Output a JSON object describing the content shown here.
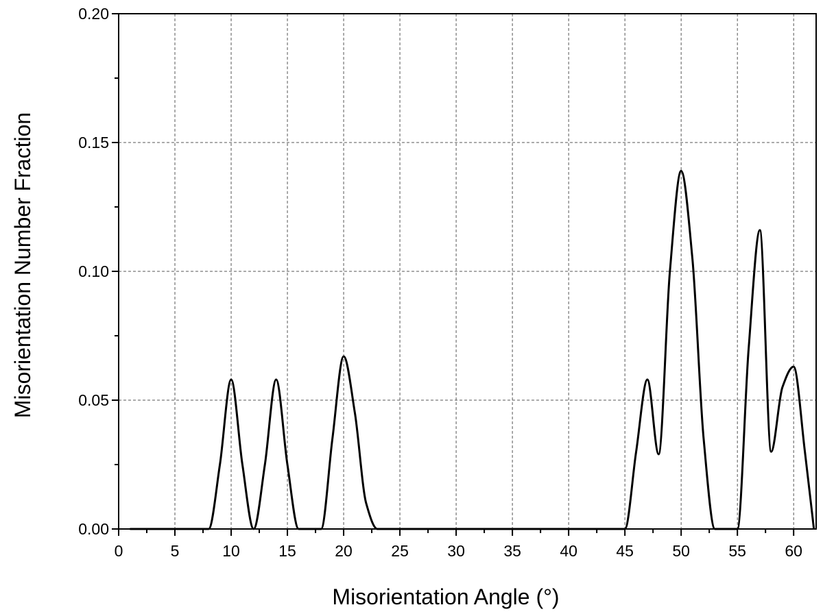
{
  "chart_data": {
    "type": "line",
    "xlabel": "Misorientation Angle (°)",
    "ylabel": "Misorientation Number Fraction",
    "xlim": [
      0,
      62
    ],
    "ylim": [
      0,
      0.2
    ],
    "xticks": [
      "0",
      "5",
      "10",
      "15",
      "20",
      "25",
      "30",
      "35",
      "40",
      "45",
      "50",
      "55",
      "60"
    ],
    "yticks": [
      "0.00",
      "0.05",
      "0.10",
      "0.15",
      "0.20"
    ],
    "grid": true,
    "series": [
      {
        "x": [
          1,
          8,
          9,
          10,
          11,
          12,
          13,
          14,
          15,
          16,
          18,
          19,
          20,
          21,
          22,
          23,
          45,
          46,
          47,
          48,
          49,
          50,
          51,
          52,
          53,
          55,
          56,
          57,
          58,
          59,
          60,
          61,
          61.8
        ],
        "y": [
          0,
          0,
          0.025,
          0.058,
          0.025,
          0,
          0.025,
          0.058,
          0.025,
          0,
          0,
          0.035,
          0.067,
          0.045,
          0.01,
          0,
          0,
          0.03,
          0.058,
          0.029,
          0.1,
          0.139,
          0.105,
          0.035,
          0,
          0,
          0.07,
          0.116,
          0.03,
          0.055,
          0.063,
          0.03,
          0
        ]
      }
    ]
  }
}
